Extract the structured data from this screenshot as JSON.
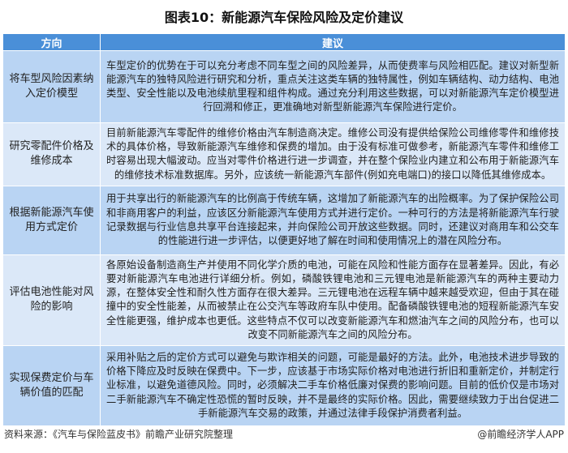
{
  "title": "图表10：新能源汽车保险风险及定价建议",
  "table": {
    "headers": [
      "方向",
      "建议"
    ],
    "rows": [
      {
        "direction": "将车型风险因素纳入定价模型",
        "advice": "车型定价的优势在于可以充分考虑不同车型之间的风险差异，从而使费率与风险相匹配。建议对新型新能源汽车的独特风险进行研究和分析，重点关注这类车辆的独特属性，例如车辆结构、动力结构、电池类型、安全性能以及电池续航里程和组件构成。通过充分利用这些数据，可以对新能源汽车定价模型进行回溯和修正，更准确地对新型新能源汽车保险进行定价。"
      },
      {
        "direction": "研究零配件价格及维修成本",
        "advice": "目前新能源汽车零配件的维修价格由汽车制造商决定。维修公司没有提供给保险公司维修零件和维修技术的具体价格，导致新能源汽车维修和保费的增加。由于没有标准可做参考，新能源汽车零件和维修工时容易出现大幅波动。应当对零件价格进行进一步调查，并在整个保险业内建立和公布用于新能源汽车的维修技术标准数据库。另外，应该统一新能源汽车部件(例如充电端口)的接口以降低其维修成本。"
      },
      {
        "direction": "根据新能源汽车使用方式定价",
        "advice": "用于共享出行的新能源汽车的比例高于传统车辆，这增加了新能源汽车的出险概率。为了保护保险公司和非商用客户的利益，应该区分新能源汽车使用方式并进行定价。一种可行的方法是将新能源汽车行驶记录数据与行业信息共享平台连接起来，并向保险公司开放这些数据。同时，还建议对商用车和公交车的性能进行进一步评估，以便更好地了解在时间和使用情况上的潜在风险分布。"
      },
      {
        "direction": "评估电池性能对风险的影响",
        "advice": "各原始设备制造商生产并使用不同化学介质的电池，可能在风险和性能方面存在显著差异。因此，有必要对新能源汽车电池进行详细分析。例如，磷酸铁锂电池和三元锂电池是新能源汽车的两种主要动力源，在整体安全性和耐久性方面存在很大差异。三元锂电池在远程车辆中越来越受欢迎，但由于其在碰撞中的安全性能差，从而被禁止在公交汽车等政府车队中使用。配备磷酸铁锂电池的短程新能源汽车安全性能更强，维护成本也更低。这些特点不仅可以改变新能源汽车和燃油汽车之间的风险分布，也可以改变不同新能源汽车之间的风险分布。"
      },
      {
        "direction": "实现保费定价与车辆价值的匹配",
        "advice": "采用补贴之后的定价方式可以避免与欺诈相关的问题，可能是最好的方法。此外，电池技术进步导致的价格下降应及时反映在保费中。下一步，应该基于市场实际价格对电池进行折旧和重新定价，并制定行业标准，以避免道德风险。同时，必须解决二手车价格低廉对保费的影响问题。目前的低价仅是市场对二手新能源汽车不确定性恐慌的暂时反映，并不是最终的实际价格。因此，需要继续致力于出台促进二手新能源汽车交易的政策，并通过法律手段保护消费者利益。"
      }
    ]
  },
  "footer": {
    "source": "资料来源：《汽车与保险蓝皮书》前瞻产业研究院整理",
    "credit": "@前瞻经济学人APP"
  },
  "colors": {
    "header": "#4a8fd8",
    "row_dark": "#b9d4f3",
    "row_light": "#dbe8f8"
  }
}
